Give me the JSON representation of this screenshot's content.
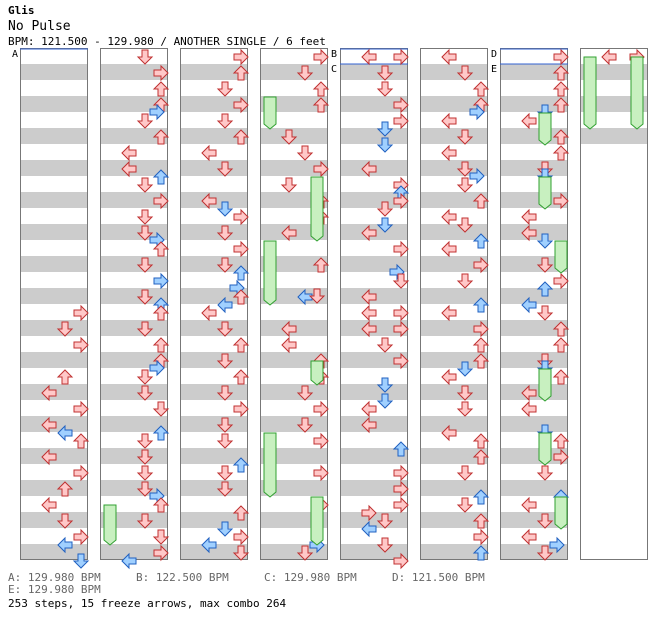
{
  "song": {
    "title": "Glis",
    "artist": "No Pulse",
    "info": "BPM: 121.500 - 129.980 / ANOTHER SINGLE / 6 feet"
  },
  "markers": [
    "A",
    "B",
    "C",
    "D",
    "E"
  ],
  "bpm_changes": [
    {
      "id": "A",
      "bpm": "A: 129.980 BPM"
    },
    {
      "id": "B",
      "bpm": "B: 122.500 BPM"
    },
    {
      "id": "C",
      "bpm": "C: 129.980 BPM"
    },
    {
      "id": "D",
      "bpm": "D: 121.500 BPM"
    },
    {
      "id": "E",
      "bpm": "E: 129.980 BPM"
    }
  ],
  "stats": "253 steps, 15 freeze arrows, max combo 264",
  "colors": {
    "stripe": "#cccccc",
    "arrow_red_fill": "#ffc8c8",
    "arrow_red_stroke": "#c03030",
    "arrow_blue_fill": "#a0d0ff",
    "arrow_blue_stroke": "#2060c0",
    "freeze_fill": "#c8f0c0",
    "freeze_stroke": "#30a030",
    "bpm_line": "#3060d0"
  }
}
